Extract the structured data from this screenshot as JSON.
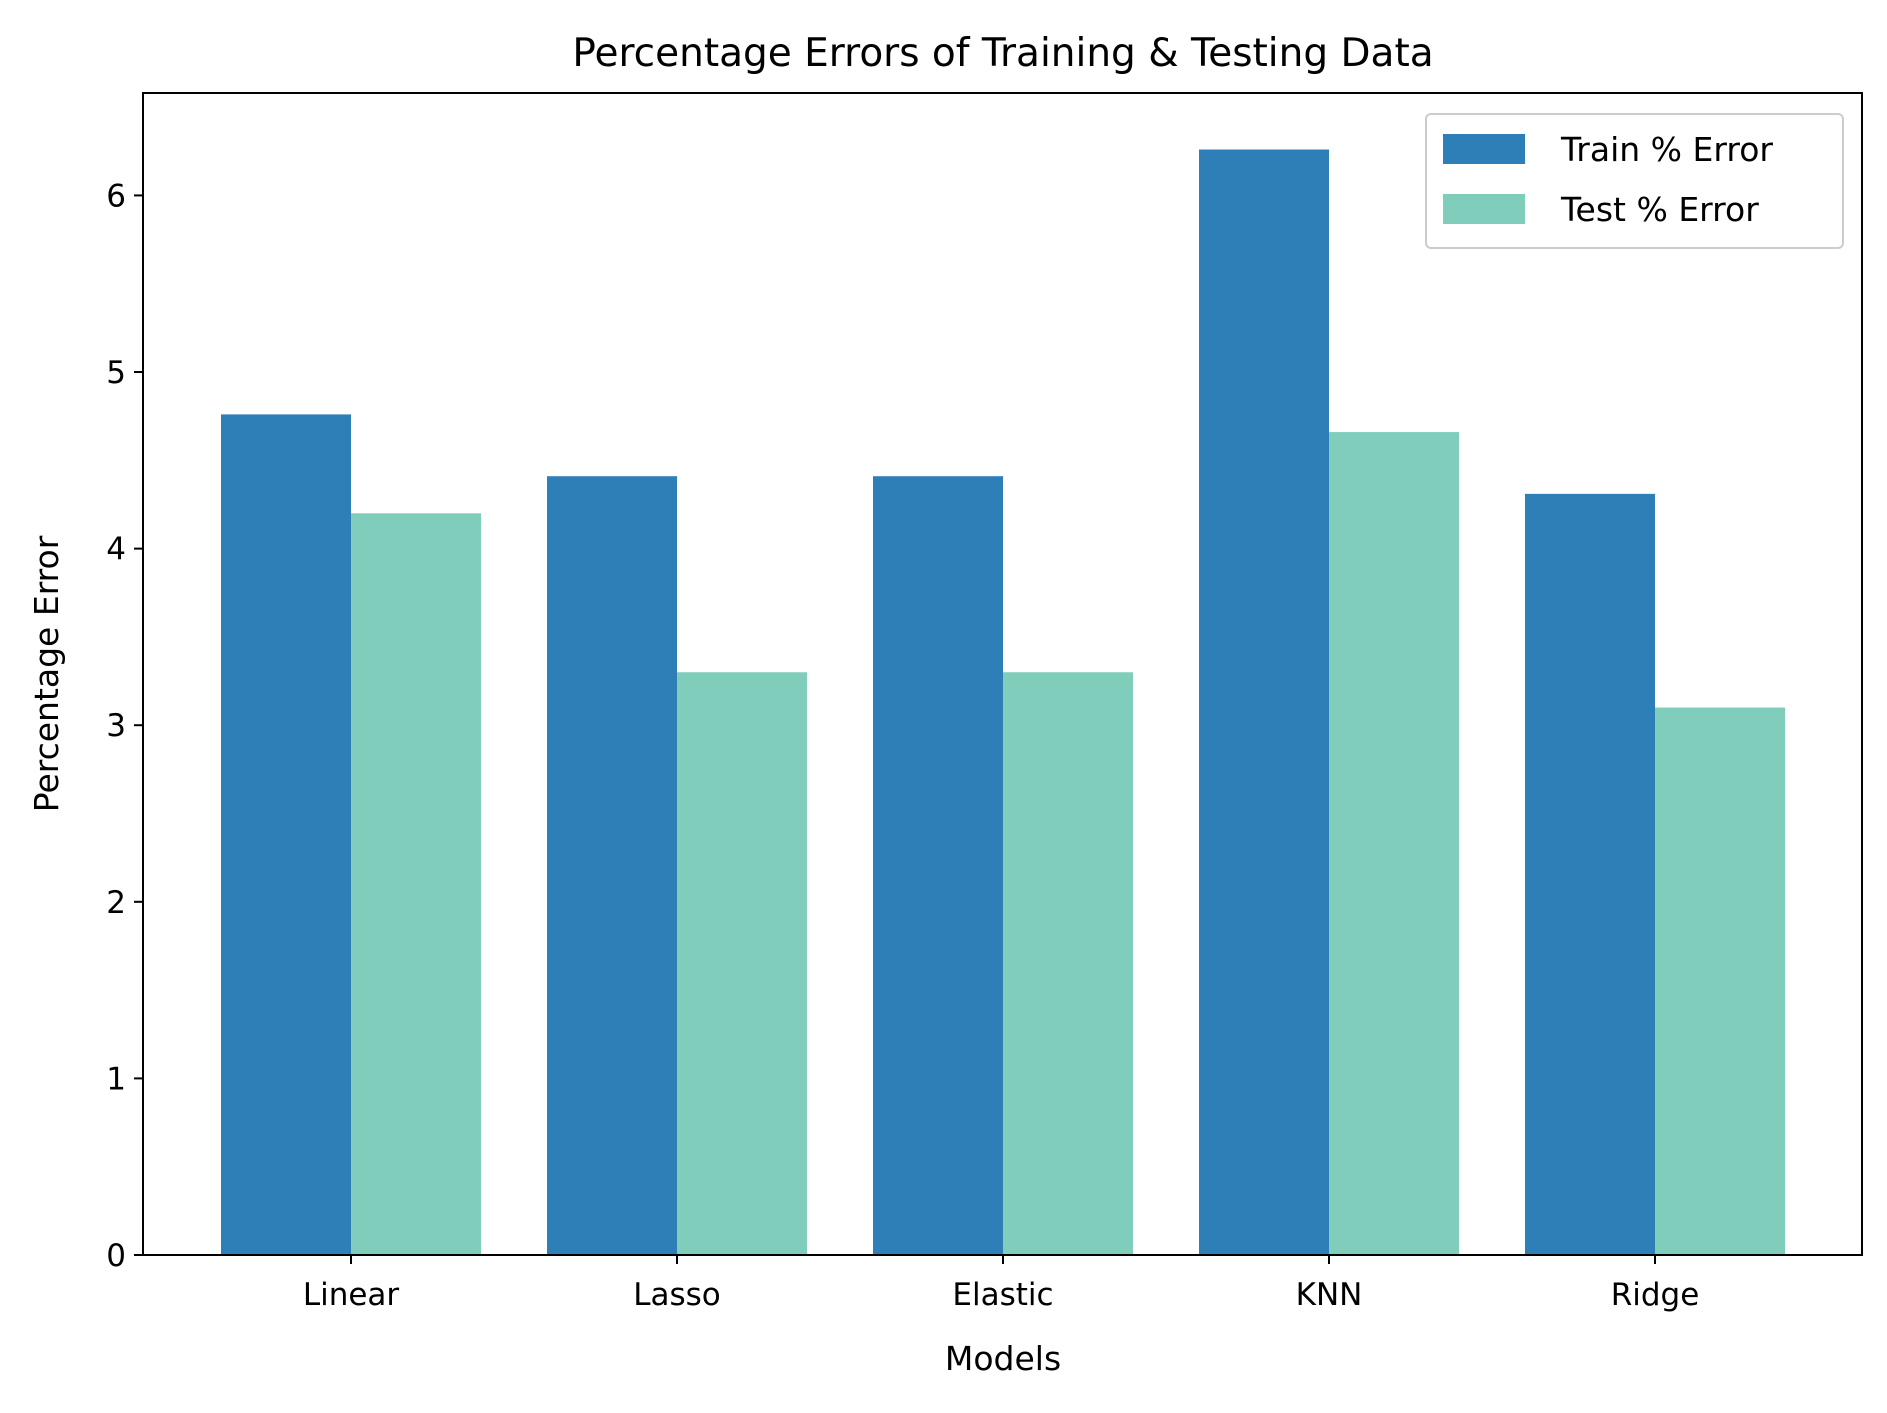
{
  "chart_data": {
    "type": "bar",
    "title": "Percentage Errors of Training & Testing Data",
    "xlabel": "Models",
    "ylabel": "Percentage Error",
    "categories": [
      "Linear",
      "Lasso",
      "Elastic",
      "KNN",
      "Ridge"
    ],
    "series": [
      {
        "name": "Train % Error",
        "color": "#2e7eb8",
        "values": [
          4.76,
          4.41,
          4.41,
          6.26,
          4.31
        ]
      },
      {
        "name": "Test % Error",
        "color": "#80cdbb",
        "values": [
          4.2,
          3.3,
          3.3,
          4.66,
          3.1
        ]
      }
    ],
    "ylim": [
      0,
      6.58
    ],
    "yticks": [
      "0",
      "1",
      "2",
      "3",
      "4",
      "5",
      "6"
    ],
    "grid": false,
    "legend_position": "top-right"
  }
}
